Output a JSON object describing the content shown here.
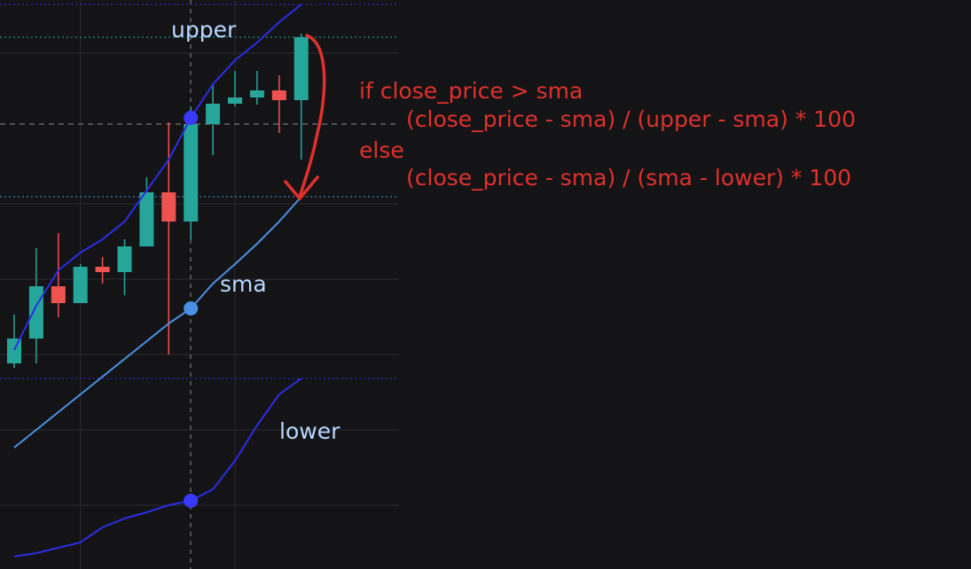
{
  "chart_data": {
    "type": "candlestick",
    "candles": {
      "open": [
        232,
        260,
        319,
        300,
        341,
        335,
        364,
        425,
        392,
        502,
        525,
        532,
        540,
        529
      ],
      "close": [
        260,
        319,
        300,
        341,
        335,
        364,
        425,
        392,
        502,
        525,
        532,
        540,
        529,
        600
      ],
      "high": [
        287,
        362,
        379,
        344,
        352,
        372,
        442,
        504,
        522,
        547,
        562,
        562,
        557,
        604
      ],
      "low": [
        227,
        232,
        284,
        300,
        322,
        309,
        364,
        242,
        372,
        467,
        522,
        524,
        492,
        462
      ],
      "up_color": "#26a69a",
      "down_color": "#ef5350"
    },
    "series": [
      {
        "name": "upper",
        "color": "#2c2ce6",
        "values": [
          247,
          297,
          337,
          357,
          372,
          392,
          427,
          462,
          509,
          547,
          574,
          594,
          617,
          637
        ]
      },
      {
        "name": "sma",
        "color": "#4a90e2",
        "values": [
          137,
          157,
          177,
          197,
          217,
          237,
          257,
          277,
          294,
          322,
          344,
          367,
          392,
          420
        ]
      },
      {
        "name": "lower",
        "color": "#2c2ce6",
        "values": [
          14,
          18,
          24,
          30,
          47,
          57,
          64,
          72,
          77,
          90,
          122,
          162,
          197,
          215
        ]
      }
    ],
    "ylim": [
      0,
      642
    ],
    "annotations": [
      "if close_price > sma",
      "(close_price - sma) / (upper - sma) * 100",
      "else",
      "(close_price - sma) / (sma - lower) * 100"
    ],
    "annotation_color": "#e0302c"
  }
}
